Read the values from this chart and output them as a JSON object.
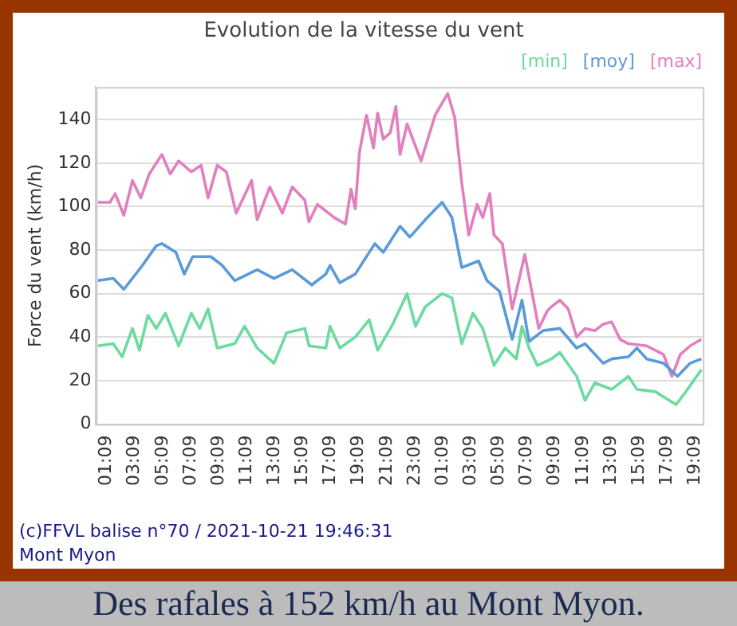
{
  "chart_data": {
    "type": "line",
    "title": "Evolution de la vitesse du vent",
    "ylabel": "Force du vent (km/h)",
    "xlim": [
      "2021-10-20T00:24",
      "2021-10-21T19:42"
    ],
    "xticks": [
      {
        "value": "2021-10-20T01:09",
        "label": "01:09"
      },
      {
        "value": "2021-10-20T03:09",
        "label": "03:09"
      },
      {
        "value": "2021-10-20T05:09",
        "label": "05:09"
      },
      {
        "value": "2021-10-20T07:09",
        "label": "07:09"
      },
      {
        "value": "2021-10-20T09:09",
        "label": "09:09"
      },
      {
        "value": "2021-10-20T11:09",
        "label": "11:09"
      },
      {
        "value": "2021-10-20T13:09",
        "label": "13:09"
      },
      {
        "value": "2021-10-20T15:09",
        "label": "15:09"
      },
      {
        "value": "2021-10-20T17:09",
        "label": "17:09"
      },
      {
        "value": "2021-10-20T19:09",
        "label": "19:09"
      },
      {
        "value": "2021-10-20T21:09",
        "label": "21:09"
      },
      {
        "value": "2021-10-20T23:09",
        "label": "23:09"
      },
      {
        "value": "2021-10-21T01:09",
        "label": "01:09"
      },
      {
        "value": "2021-10-21T03:09",
        "label": "03:09"
      },
      {
        "value": "2021-10-21T05:09",
        "label": "05:09"
      },
      {
        "value": "2021-10-21T07:09",
        "label": "07:09"
      },
      {
        "value": "2021-10-21T09:09",
        "label": "09:09"
      },
      {
        "value": "2021-10-21T11:09",
        "label": "11:09"
      },
      {
        "value": "2021-10-21T13:09",
        "label": "13:09"
      },
      {
        "value": "2021-10-21T15:09",
        "label": "15:09"
      },
      {
        "value": "2021-10-21T17:09",
        "label": "17:09"
      },
      {
        "value": "2021-10-21T19:09",
        "label": "19:09"
      }
    ],
    "ylim": [
      0,
      155
    ],
    "yticks": [
      0,
      20,
      40,
      60,
      80,
      100,
      120,
      140
    ],
    "grid": "y",
    "legend": "top right",
    "marker": "none",
    "series": [
      {
        "name": "[min]",
        "color": "#6ddaa0",
        "x": [
          "2021-10-20T00:32",
          "2021-10-20T01:38",
          "2021-10-20T02:16",
          "2021-10-20T03:00",
          "2021-10-20T03:30",
          "2021-10-20T04:06",
          "2021-10-20T04:42",
          "2021-10-20T05:21",
          "2021-10-20T06:18",
          "2021-10-20T07:12",
          "2021-10-20T07:48",
          "2021-10-20T08:24",
          "2021-10-20T09:03",
          "2021-10-20T10:18",
          "2021-10-20T11:00",
          "2021-10-20T11:54",
          "2021-10-20T13:06",
          "2021-10-20T14:00",
          "2021-10-20T15:18",
          "2021-10-20T15:36",
          "2021-10-20T16:48",
          "2021-10-20T17:06",
          "2021-10-20T17:48",
          "2021-10-20T18:54",
          "2021-10-20T19:54",
          "2021-10-20T20:30",
          "2021-10-20T21:30",
          "2021-10-20T22:36",
          "2021-10-20T23:12",
          "2021-10-20T23:54",
          "2021-10-21T01:06",
          "2021-10-21T01:48",
          "2021-10-21T02:30",
          "2021-10-21T03:18",
          "2021-10-21T04:00",
          "2021-10-21T04:48",
          "2021-10-21T05:36",
          "2021-10-21T06:24",
          "2021-10-21T06:48",
          "2021-10-21T07:18",
          "2021-10-21T07:54",
          "2021-10-21T08:54",
          "2021-10-21T09:30",
          "2021-10-21T10:42",
          "2021-10-21T11:18",
          "2021-10-21T12:00",
          "2021-10-21T13:12",
          "2021-10-21T14:24",
          "2021-10-21T15:00",
          "2021-10-21T16:18",
          "2021-10-21T17:48",
          "2021-10-21T18:30",
          "2021-10-21T19:36"
        ],
        "values": [
          36,
          37,
          31,
          44,
          34,
          50,
          44,
          51,
          36,
          51,
          44,
          53,
          35,
          37,
          45,
          35,
          28,
          42,
          44,
          36,
          35,
          45,
          35,
          40,
          48,
          34,
          45,
          60,
          45,
          54,
          60,
          58,
          37,
          51,
          44,
          27,
          35,
          30,
          45,
          35,
          27,
          30,
          33,
          22,
          11,
          19,
          16,
          22,
          16,
          15,
          9,
          15,
          25
        ]
      },
      {
        "name": "[moy]",
        "color": "#5b9ad8",
        "x": [
          "2021-10-20T00:32",
          "2021-10-20T01:38",
          "2021-10-20T02:23",
          "2021-10-20T03:36",
          "2021-10-20T04:42",
          "2021-10-20T05:06",
          "2021-10-20T06:06",
          "2021-10-20T06:42",
          "2021-10-20T07:18",
          "2021-10-20T08:36",
          "2021-10-20T09:24",
          "2021-10-20T10:18",
          "2021-10-20T11:54",
          "2021-10-20T13:06",
          "2021-10-20T14:24",
          "2021-10-20T15:48",
          "2021-10-20T16:48",
          "2021-10-20T17:06",
          "2021-10-20T17:48",
          "2021-10-20T18:54",
          "2021-10-20T20:18",
          "2021-10-20T20:54",
          "2021-10-20T22:06",
          "2021-10-20T22:48",
          "2021-10-20T23:54",
          "2021-10-21T01:06",
          "2021-10-21T01:48",
          "2021-10-21T02:30",
          "2021-10-21T03:42",
          "2021-10-21T04:18",
          "2021-10-21T05:12",
          "2021-10-21T06:06",
          "2021-10-21T06:48",
          "2021-10-21T07:18",
          "2021-10-21T08:18",
          "2021-10-21T09:30",
          "2021-10-21T10:42",
          "2021-10-21T11:18",
          "2021-10-21T12:36",
          "2021-10-21T13:12",
          "2021-10-21T14:24",
          "2021-10-21T15:00",
          "2021-10-21T15:42",
          "2021-10-21T16:54",
          "2021-10-21T17:54",
          "2021-10-21T18:48",
          "2021-10-21T19:36"
        ],
        "values": [
          66,
          67,
          62,
          72,
          82,
          83,
          79,
          69,
          77,
          77,
          73,
          66,
          71,
          67,
          71,
          64,
          69,
          73,
          65,
          69,
          83,
          79,
          91,
          86,
          94,
          102,
          95,
          72,
          75,
          66,
          61,
          39,
          57,
          38,
          43,
          44,
          35,
          37,
          28,
          30,
          31,
          35,
          30,
          28,
          22,
          28,
          30
        ]
      },
      {
        "name": "[max]",
        "color": "#e27fbf",
        "x": [
          "2021-10-20T00:32",
          "2021-10-20T01:24",
          "2021-10-20T01:46",
          "2021-10-20T02:23",
          "2021-10-20T03:00",
          "2021-10-20T03:36",
          "2021-10-20T04:12",
          "2021-10-20T05:06",
          "2021-10-20T05:42",
          "2021-10-20T06:18",
          "2021-10-20T07:12",
          "2021-10-20T07:54",
          "2021-10-20T08:24",
          "2021-10-20T09:03",
          "2021-10-20T09:42",
          "2021-10-20T10:24",
          "2021-10-20T11:30",
          "2021-10-20T11:54",
          "2021-10-20T12:48",
          "2021-10-20T13:42",
          "2021-10-20T14:24",
          "2021-10-20T15:18",
          "2021-10-20T15:36",
          "2021-10-20T16:12",
          "2021-10-20T17:24",
          "2021-10-20T18:12",
          "2021-10-20T18:36",
          "2021-10-20T18:54",
          "2021-10-20T19:12",
          "2021-10-20T19:42",
          "2021-10-20T20:12",
          "2021-10-20T20:30",
          "2021-10-20T20:54",
          "2021-10-20T21:24",
          "2021-10-20T21:48",
          "2021-10-20T22:06",
          "2021-10-20T22:36",
          "2021-10-20T23:36",
          "2021-10-21T00:36",
          "2021-10-21T01:30",
          "2021-10-21T02:00",
          "2021-10-21T02:30",
          "2021-10-21T03:00",
          "2021-10-21T03:36",
          "2021-10-21T04:00",
          "2021-10-21T04:30",
          "2021-10-21T04:48",
          "2021-10-21T05:24",
          "2021-10-21T06:06",
          "2021-10-21T07:00",
          "2021-10-21T08:00",
          "2021-10-21T08:36",
          "2021-10-21T08:54",
          "2021-10-21T09:30",
          "2021-10-21T10:06",
          "2021-10-21T10:42",
          "2021-10-21T11:18",
          "2021-10-21T12:00",
          "2021-10-21T12:36",
          "2021-10-21T13:12",
          "2021-10-21T13:48",
          "2021-10-21T14:24",
          "2021-10-21T15:42",
          "2021-10-21T16:54",
          "2021-10-21T17:30",
          "2021-10-21T18:06",
          "2021-10-21T18:48",
          "2021-10-21T19:36"
        ],
        "values": [
          102,
          102,
          106,
          96,
          112,
          104,
          115,
          124,
          115,
          121,
          116,
          119,
          104,
          119,
          116,
          97,
          112,
          94,
          109,
          97,
          109,
          103,
          93,
          101,
          95,
          92,
          108,
          99,
          125,
          142,
          127,
          143,
          131,
          134,
          146,
          124,
          138,
          121,
          142,
          152,
          141,
          111,
          87,
          101,
          95,
          106,
          87,
          83,
          53,
          78,
          44,
          52,
          54,
          57,
          53,
          40,
          44,
          43,
          46,
          47,
          39,
          37,
          36,
          32,
          22,
          32,
          36,
          39
        ]
      }
    ],
    "annotations": [
      "(c)FFVL balise n°70 / 2021-10-21 19:46:31",
      "Mont Myon",
      "Des rafales à 152 km/h au Mont Myon."
    ]
  }
}
